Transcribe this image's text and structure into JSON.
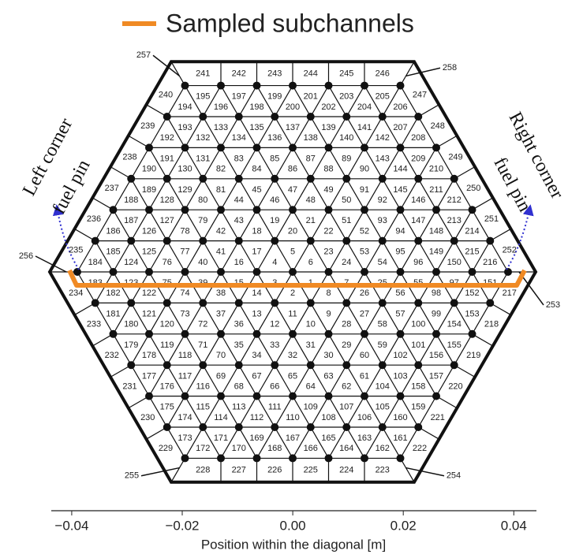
{
  "legend": {
    "label": "Sampled subchannels"
  },
  "annotations": {
    "left": [
      "Left corner",
      "fuel pin"
    ],
    "right": [
      "Right corner",
      "fuel pin"
    ]
  },
  "subchannels": {
    "interior": [
      1,
      2,
      3,
      4,
      5,
      6,
      7,
      8,
      9,
      10,
      11,
      12,
      13,
      14,
      15,
      16,
      17,
      18,
      19,
      20,
      21,
      22,
      23,
      24,
      25,
      26,
      27,
      28,
      29,
      30,
      31,
      32,
      33,
      34,
      35,
      36,
      37,
      38,
      39,
      40,
      41,
      42,
      43,
      44,
      45,
      46,
      47,
      48,
      49,
      50,
      51,
      52,
      53,
      54,
      55,
      56,
      57,
      58,
      59,
      60,
      61,
      62,
      63,
      64,
      65,
      66,
      67,
      68,
      69,
      70,
      71,
      72,
      73,
      74,
      75,
      76,
      77,
      78,
      79,
      80,
      81,
      82,
      83,
      84,
      85,
      86,
      87,
      88,
      89,
      90,
      91,
      92,
      93,
      94,
      95,
      96,
      97,
      98,
      99,
      100,
      101,
      102,
      103,
      104,
      105,
      106,
      107,
      108,
      109,
      110,
      111,
      112,
      113,
      114,
      115,
      116,
      117,
      118,
      119,
      120,
      121,
      122,
      123,
      124,
      125,
      126,
      127,
      128,
      129,
      130,
      131,
      132,
      133,
      134,
      135,
      136,
      137,
      138,
      139,
      140,
      141,
      142,
      143,
      144,
      145,
      146,
      147,
      148,
      149,
      150,
      151,
      152,
      153,
      154,
      155,
      156,
      157,
      158,
      159,
      160,
      161,
      162,
      163,
      164,
      165,
      166,
      167,
      168,
      169,
      170,
      171,
      172,
      173,
      174,
      175,
      176,
      177,
      178,
      179,
      180,
      181,
      182,
      183,
      184,
      185,
      186,
      187,
      188,
      189,
      190,
      191,
      192,
      193,
      194,
      195,
      196,
      197,
      198,
      199,
      200,
      201,
      202,
      203,
      204,
      205,
      206,
      207,
      208,
      209,
      210,
      211,
      212,
      213,
      214,
      215,
      216
    ],
    "edge": [
      217,
      218,
      219,
      220,
      221,
      222,
      223,
      224,
      225,
      226,
      227,
      228,
      229,
      230,
      231,
      232,
      233,
      234,
      235,
      236,
      237,
      238,
      239,
      240,
      241,
      242,
      243,
      244,
      245,
      246,
      247,
      248,
      249,
      250,
      251,
      252
    ],
    "corner": [
      253,
      254,
      255,
      256,
      257,
      258
    ]
  },
  "axis": {
    "label": "Position within the diagonal [m]",
    "lim": [
      -0.0437,
      0.0441
    ],
    "ticks": [
      {
        "value": -0.04,
        "label": "−0.04"
      },
      {
        "value": -0.02,
        "label": "−0.02"
      },
      {
        "value": 0,
        "label": "0.00"
      },
      0.02,
      0.04
    ]
  }
}
